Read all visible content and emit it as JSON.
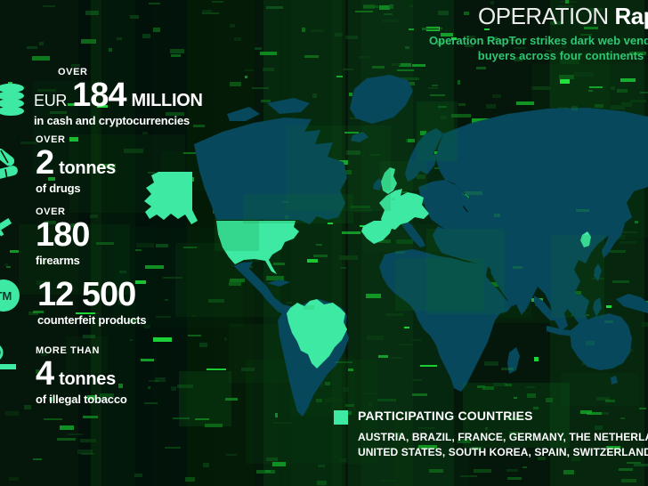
{
  "header": {
    "title_regular": "OPERATION ",
    "title_bold": "RapTor",
    "subtitle_line1": "Operation RapTor strikes dark web vendors and",
    "subtitle_line2": "buyers across four continents"
  },
  "stats": [
    {
      "qualifier": "OVER",
      "prefix": "EUR",
      "value": "184",
      "unit": "MILLION",
      "caption": "in cash and cryptocurrencies",
      "icon": "coins-icon"
    },
    {
      "qualifier": "OVER",
      "value": "2",
      "unit": "tonnes",
      "caption": "of drugs",
      "icon": "pills-icon"
    },
    {
      "qualifier": "OVER",
      "value": "180",
      "unit": "",
      "caption": "firearms",
      "icon": "rifle-icon"
    },
    {
      "qualifier": "",
      "value": "12 500",
      "unit": "",
      "caption": "counterfeit products",
      "icon": "trademark-icon"
    },
    {
      "qualifier": "MORE THAN",
      "value": "4",
      "unit": "tonnes",
      "caption": "of illegal tobacco",
      "icon": "cigarette-icon"
    }
  ],
  "legend": {
    "title": "PARTICIPATING COUNTRIES",
    "countries_line1": "AUSTRIA, BRAZIL, FRANCE, GERMANY, THE NETHERLANDS, UNITED KINGDOM,",
    "countries_line2": "UNITED STATES, SOUTH KOREA, SPAIN, SWITZERLAND"
  },
  "trademark_icon_text": "TM",
  "colors": {
    "highlight_green": "#3ee9a4",
    "land_teal": "#07485c",
    "subtitle_green": "#2fc573",
    "background_dark": "#04170a"
  }
}
